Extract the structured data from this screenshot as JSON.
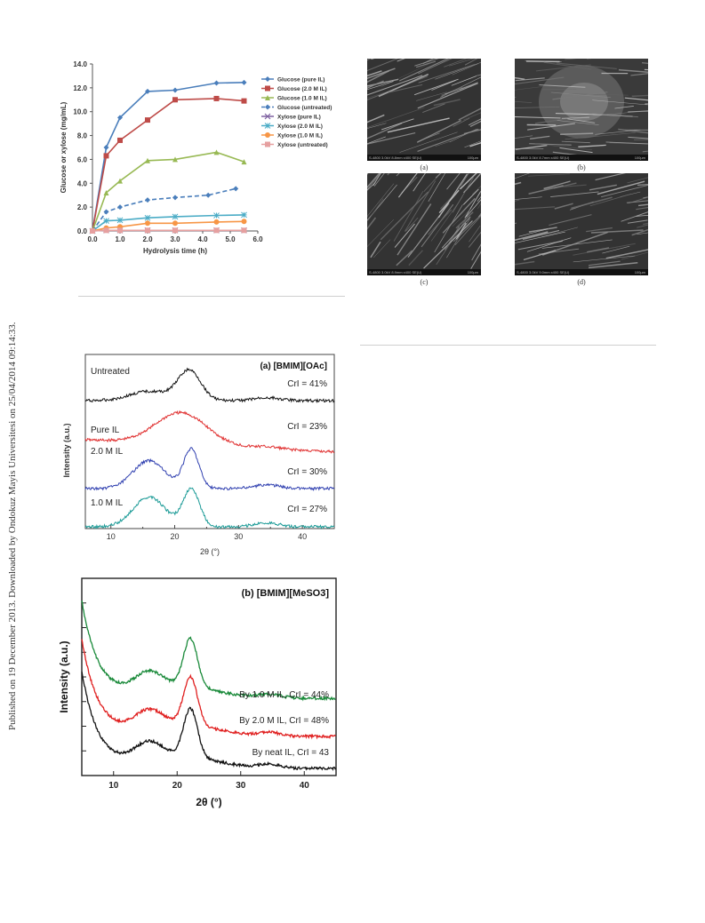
{
  "sidebar_note": "Published on 19 December 2013. Downloaded by Ondokuz Mayis Universitesi on 25/04/2014 09:14:33.",
  "sem_panels": [
    {
      "caption": "(a)",
      "info": "S-4800 3.0kV 8.8mm x400 SE(U)",
      "scale": "100µm"
    },
    {
      "caption": "(b)",
      "info": "S-4800 3.0kV 8.7mm x400 SE(U)",
      "scale": "100µm"
    },
    {
      "caption": "(c)",
      "info": "S-4800 3.0kV 8.9mm x400 SE(U)",
      "scale": "100µm"
    },
    {
      "caption": "(d)",
      "info": "S-4800 3.0kV 9.0mm x400 SE(U)",
      "scale": "100µm"
    }
  ],
  "chart_data": [
    {
      "type": "line",
      "xlabel": "Hydrolysis time (h)",
      "ylabel": "Glucose or xylose (mg/mL)",
      "xlim": [
        0,
        6
      ],
      "ylim": [
        0,
        14
      ],
      "xticks": [
        "0.0",
        "1.0",
        "2.0",
        "3.0",
        "4.0",
        "5.0",
        "6.0"
      ],
      "yticks": [
        "0.0",
        "2.0",
        "4.0",
        "6.0",
        "8.0",
        "10.0",
        "12.0",
        "14.0"
      ],
      "legend_position": "right",
      "series": [
        {
          "name": "Glucose (pure IL)",
          "color": "#4a7ebb",
          "marker": "diamond",
          "dashed": false,
          "x": [
            0,
            0.5,
            1,
            2,
            3,
            4.5,
            5.5
          ],
          "y": [
            0,
            7.0,
            9.5,
            11.7,
            11.8,
            12.4,
            12.45
          ]
        },
        {
          "name": "Glucose (2.0 M IL)",
          "color": "#be4b48",
          "marker": "square",
          "dashed": false,
          "x": [
            0,
            0.5,
            1,
            2,
            3,
            4.5,
            5.5
          ],
          "y": [
            0,
            6.3,
            7.6,
            9.3,
            11.0,
            11.1,
            10.9
          ]
        },
        {
          "name": "Glucose (1.0 M IL)",
          "color": "#98b954",
          "marker": "triangle",
          "dashed": false,
          "x": [
            0,
            0.5,
            1,
            2,
            3,
            4.5,
            5.5
          ],
          "y": [
            0,
            3.2,
            4.2,
            5.9,
            6.0,
            6.6,
            5.8
          ]
        },
        {
          "name": "Glucose (untreated)",
          "color": "#4a7ebb",
          "marker": "diamond",
          "dashed": true,
          "x": [
            0,
            0.5,
            1,
            2,
            3,
            4.2,
            5.2
          ],
          "y": [
            0,
            1.6,
            2.0,
            2.6,
            2.8,
            3.0,
            3.55
          ]
        },
        {
          "name": "Xylose (pure IL)",
          "color": "#7d60a0",
          "marker": "x",
          "dashed": false,
          "x": [
            0,
            0.5,
            1,
            2,
            3,
            4.5,
            5.5
          ],
          "y": [
            0,
            0.05,
            0.05,
            0.05,
            0.05,
            0.05,
            0.05
          ]
        },
        {
          "name": "Xylose (2.0 M IL)",
          "color": "#4bacc6",
          "marker": "star",
          "dashed": false,
          "x": [
            0,
            0.5,
            1,
            2,
            3,
            4.5,
            5.5
          ],
          "y": [
            0,
            0.85,
            0.9,
            1.1,
            1.2,
            1.3,
            1.35
          ]
        },
        {
          "name": "Xylose (1.0 M IL)",
          "color": "#f79646",
          "marker": "circle",
          "dashed": false,
          "x": [
            0,
            0.5,
            1,
            2,
            3,
            4.5,
            5.5
          ],
          "y": [
            0,
            0.25,
            0.35,
            0.65,
            0.65,
            0.75,
            0.8
          ]
        },
        {
          "name": "Xylose (untreated)",
          "color": "#e6a0a0",
          "marker": "square",
          "dashed": false,
          "x": [
            0,
            0.5,
            1,
            2,
            3,
            4.5,
            5.5
          ],
          "y": [
            0,
            0.05,
            0.05,
            0.05,
            0.05,
            0.05,
            0.05
          ]
        }
      ]
    },
    {
      "type": "line",
      "title": "(a) [BMIM][OAc]",
      "xlabel": "2θ (°)",
      "ylabel": "Intensity (a.u.)",
      "xlim": [
        6,
        45
      ],
      "xticks": [
        "10",
        "20",
        "30",
        "40"
      ],
      "grid": false,
      "series": [
        {
          "name": "Untreated",
          "crl": "CrI = 41%",
          "color": "#111111",
          "offset": 3.0
        },
        {
          "name": "Pure IL",
          "crl": "CrI = 23%",
          "color": "#e03030",
          "offset": 2.0
        },
        {
          "name": "2.0 M IL",
          "crl": "CrI = 30%",
          "color": "#3040b0",
          "offset": 1.0
        },
        {
          "name": "1.0 M IL",
          "crl": "CrI = 27%",
          "color": "#1a9a96",
          "offset": 0.0
        }
      ]
    },
    {
      "type": "line",
      "title": "(b) [BMIM][MeSO3]",
      "xlabel": "2θ (°)",
      "ylabel": "Intensity (a.u.)",
      "xlim": [
        5,
        45
      ],
      "xticks": [
        "10",
        "20",
        "30",
        "40"
      ],
      "grid": false,
      "series": [
        {
          "name": "By 1.0 M IL, CrI = 44%",
          "color": "#1a8a3a",
          "offset": 2.0
        },
        {
          "name": "By 2.0 M IL, CrI = 48%",
          "color": "#e02020",
          "offset": 1.0
        },
        {
          "name": "By neat IL, CrI = 43",
          "color": "#111111",
          "offset": 0.0
        }
      ]
    }
  ]
}
